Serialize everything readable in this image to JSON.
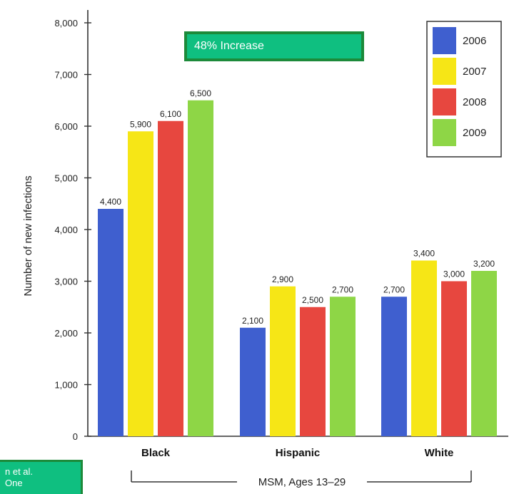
{
  "chart_data": {
    "type": "bar",
    "categories": [
      "Black",
      "Hispanic",
      "White"
    ],
    "series": [
      {
        "name": "2006",
        "values": [
          4400,
          2100,
          2700
        ]
      },
      {
        "name": "2007",
        "values": [
          5900,
          2900,
          3400
        ]
      },
      {
        "name": "2008",
        "values": [
          6100,
          2500,
          3000
        ]
      },
      {
        "name": "2009",
        "values": [
          6500,
          2700,
          3200
        ]
      }
    ],
    "data_labels": [
      [
        "4,400",
        "5,900",
        "6,100",
        "6,500"
      ],
      [
        "2,100",
        "2,900",
        "2,500",
        "2,700"
      ],
      [
        "2,700",
        "3,400",
        "3,000",
        "3,200"
      ]
    ],
    "ylabel": "Number of new infections",
    "xlabel": "",
    "ylim": [
      0,
      8000
    ],
    "yticks": [
      0,
      1000,
      2000,
      3000,
      4000,
      5000,
      6000,
      7000,
      8000
    ],
    "ytick_labels": [
      "0",
      "1,000",
      "2,000",
      "3,000",
      "4,000",
      "5,000",
      "6,000",
      "7,000",
      "8,000"
    ],
    "grid": false,
    "legend_position": "top-right",
    "colors": [
      "#3f5fcf",
      "#f6e616",
      "#e7473f",
      "#8ed646"
    ],
    "group_label": "MSM, Ages 13–29"
  },
  "annotations": {
    "increase": "48% Increase",
    "citation_line1": "n et al.",
    "citation_line2": "One"
  }
}
